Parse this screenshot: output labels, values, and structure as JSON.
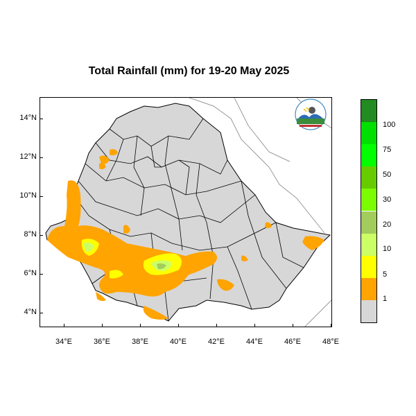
{
  "title": "Total Rainfall (mm) for 19-20 May 2025",
  "chart_data": {
    "type": "heatmap",
    "title": "Total Rainfall (mm) for 19-20 May 2025",
    "xlim": [
      33,
      48.2
    ],
    "ylim": [
      3.2,
      15.1
    ],
    "x_ticks": [
      "34°E",
      "36°E",
      "38°E",
      "40°E",
      "42°E",
      "44°E",
      "46°E",
      "48°E"
    ],
    "y_ticks": [
      "4°N",
      "6°N",
      "8°N",
      "10°N",
      "12°N",
      "14°N"
    ],
    "legend": {
      "placement": "right",
      "labels": [
        "1",
        "5",
        "10",
        "20",
        "30",
        "50",
        "75",
        "100"
      ],
      "colors": [
        "#d7d7d7",
        "#ffa400",
        "#ffff00",
        "#ccff66",
        "#a2cc5c",
        "#7cfc00",
        "#66cc00",
        "#00ff00",
        "#00e000",
        "#228b22"
      ]
    }
  },
  "colors": {
    "land": "#d7d7d7",
    "boundary": "#000000",
    "neighbor_border": "#999999",
    "rain_1": "#ffa400",
    "rain_5": "#ffff00",
    "rain_10": "#ccff66",
    "rain_20": "#a2cc5c"
  },
  "logo": {
    "icon": "ethiopian-meteorology-institute-logo-icon"
  }
}
